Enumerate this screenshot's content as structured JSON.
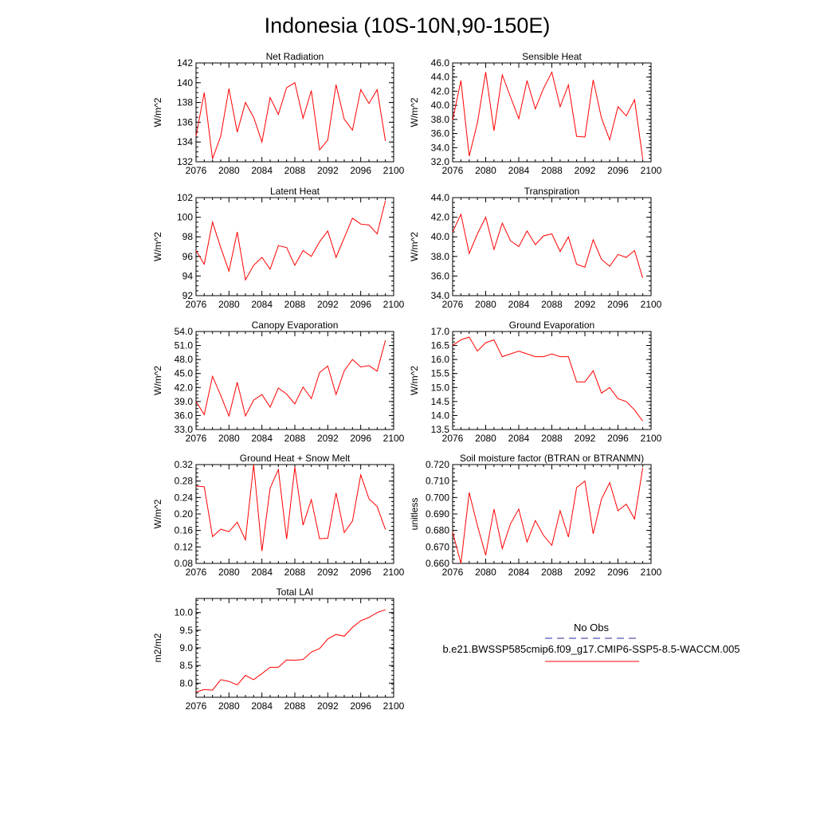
{
  "figure_title": "Indonesia (10S-10N,90-150E)",
  "legend": {
    "obs_label": "No Obs",
    "obs_color": "#2a2a9a",
    "model_label": "b.e21.BWSSP585cmip6.f09_g17.CMIP6-SSP5-8.5-WACCM.005",
    "model_color": "#ff0000"
  },
  "chart_data": [
    {
      "type": "line",
      "title": "Net Radiation",
      "ylabel": "W/m^2",
      "xlim": [
        2076,
        2100
      ],
      "ylim": [
        132,
        142
      ],
      "xticks": [
        "2076",
        "2080",
        "2084",
        "2088",
        "2092",
        "2096",
        "2100"
      ],
      "yticks": [
        "132",
        "134",
        "136",
        "138",
        "140",
        "142"
      ],
      "x": [
        2076,
        2077,
        2078,
        2079,
        2080,
        2081,
        2082,
        2083,
        2084,
        2085,
        2086,
        2087,
        2088,
        2089,
        2090,
        2091,
        2092,
        2093,
        2094,
        2095,
        2096,
        2097,
        2098,
        2099
      ],
      "values": [
        134.6,
        139.0,
        132.3,
        134.6,
        139.4,
        135.0,
        138.0,
        136.5,
        134.0,
        138.5,
        136.8,
        139.5,
        140.0,
        136.4,
        139.2,
        133.2,
        134.2,
        139.8,
        136.3,
        135.2,
        139.3,
        137.9,
        139.3,
        134.1
      ]
    },
    {
      "type": "line",
      "title": "Sensible Heat",
      "ylabel": "W/m^2",
      "xlim": [
        2076,
        2100
      ],
      "ylim": [
        32,
        46
      ],
      "xticks": [
        "2076",
        "2080",
        "2084",
        "2088",
        "2092",
        "2096",
        "2100"
      ],
      "yticks": [
        "32.0",
        "34.0",
        "36.0",
        "38.0",
        "40.0",
        "42.0",
        "44.0",
        "46.0"
      ],
      "x": [
        2076,
        2077,
        2078,
        2079,
        2080,
        2081,
        2082,
        2083,
        2084,
        2085,
        2086,
        2087,
        2088,
        2089,
        2090,
        2091,
        2092,
        2093,
        2094,
        2095,
        2096,
        2097,
        2098,
        2099
      ],
      "values": [
        37.9,
        43.5,
        32.8,
        37.5,
        44.7,
        36.4,
        44.3,
        41.2,
        38.1,
        43.5,
        39.5,
        42.4,
        44.7,
        39.8,
        42.9,
        35.6,
        35.5,
        43.6,
        38.2,
        35.1,
        39.8,
        38.5,
        40.8,
        32.4
      ]
    },
    {
      "type": "line",
      "title": "Latent Heat",
      "ylabel": "W/m^2",
      "xlim": [
        2076,
        2100
      ],
      "ylim": [
        92,
        102
      ],
      "xticks": [
        "2076",
        "2080",
        "2084",
        "2088",
        "2092",
        "2096",
        "2100"
      ],
      "yticks": [
        "92",
        "94",
        "96",
        "98",
        "100",
        "102"
      ],
      "x": [
        2076,
        2077,
        2078,
        2079,
        2080,
        2081,
        2082,
        2083,
        2084,
        2085,
        2086,
        2087,
        2088,
        2089,
        2090,
        2091,
        2092,
        2093,
        2094,
        2095,
        2096,
        2097,
        2098,
        2099
      ],
      "values": [
        96.6,
        95.2,
        99.5,
        96.9,
        94.5,
        98.5,
        93.6,
        95.1,
        95.9,
        94.7,
        97.1,
        96.9,
        95.1,
        96.6,
        96.0,
        97.5,
        98.6,
        95.9,
        97.9,
        99.9,
        99.3,
        99.2,
        98.3,
        101.7
      ]
    },
    {
      "type": "line",
      "title": "Transpiration",
      "ylabel": "W/m^2",
      "xlim": [
        2076,
        2100
      ],
      "ylim": [
        34,
        44
      ],
      "xticks": [
        "2076",
        "2080",
        "2084",
        "2088",
        "2092",
        "2096",
        "2100"
      ],
      "yticks": [
        "34.0",
        "36.0",
        "38.0",
        "40.0",
        "42.0",
        "44.0"
      ],
      "x": [
        2076,
        2077,
        2078,
        2079,
        2080,
        2081,
        2082,
        2083,
        2084,
        2085,
        2086,
        2087,
        2088,
        2089,
        2090,
        2091,
        2092,
        2093,
        2094,
        2095,
        2096,
        2097,
        2098,
        2099
      ],
      "values": [
        40.5,
        42.3,
        38.3,
        40.3,
        42.0,
        38.7,
        41.4,
        39.6,
        39.0,
        40.6,
        39.2,
        40.1,
        40.3,
        38.5,
        40.0,
        37.2,
        36.9,
        39.7,
        37.7,
        37.0,
        38.2,
        37.9,
        38.6,
        35.8
      ]
    },
    {
      "type": "line",
      "title": "Canopy Evaporation",
      "ylabel": "W/m^2",
      "xlim": [
        2076,
        2100
      ],
      "ylim": [
        33,
        54
      ],
      "xticks": [
        "2076",
        "2080",
        "2084",
        "2088",
        "2092",
        "2096",
        "2100"
      ],
      "yticks": [
        "33.0",
        "36.0",
        "39.0",
        "42.0",
        "45.0",
        "48.0",
        "51.0",
        "54.0"
      ],
      "x": [
        2076,
        2077,
        2078,
        2079,
        2080,
        2081,
        2082,
        2083,
        2084,
        2085,
        2086,
        2087,
        2088,
        2089,
        2090,
        2091,
        2092,
        2093,
        2094,
        2095,
        2096,
        2097,
        2098,
        2099
      ],
      "values": [
        39.0,
        36.2,
        44.4,
        40.3,
        35.9,
        43.1,
        35.9,
        39.3,
        40.5,
        37.8,
        41.9,
        40.6,
        38.5,
        42.1,
        39.6,
        45.2,
        46.6,
        40.5,
        45.6,
        48.0,
        46.4,
        46.7,
        45.5,
        52.1
      ]
    },
    {
      "type": "line",
      "title": "Ground Evaporation",
      "ylabel": "W/m^2",
      "xlim": [
        2076,
        2100
      ],
      "ylim": [
        13.5,
        17
      ],
      "xticks": [
        "2076",
        "2080",
        "2084",
        "2088",
        "2092",
        "2096",
        "2100"
      ],
      "yticks": [
        "13.5",
        "14.0",
        "14.5",
        "15.0",
        "15.5",
        "16.0",
        "16.5",
        "17.0"
      ],
      "x": [
        2076,
        2077,
        2078,
        2079,
        2080,
        2081,
        2082,
        2083,
        2084,
        2085,
        2086,
        2087,
        2088,
        2089,
        2090,
        2091,
        2092,
        2093,
        2094,
        2095,
        2096,
        2097,
        2098,
        2099
      ],
      "values": [
        16.5,
        16.7,
        16.8,
        16.3,
        16.6,
        16.7,
        16.1,
        16.2,
        16.3,
        16.2,
        16.1,
        16.1,
        16.2,
        16.1,
        16.1,
        15.2,
        15.2,
        15.6,
        14.8,
        15.0,
        14.6,
        14.5,
        14.2,
        13.8
      ]
    },
    {
      "type": "line",
      "title": "Ground Heat + Snow Melt",
      "ylabel": "W/m^2",
      "xlim": [
        2076,
        2100
      ],
      "ylim": [
        0.08,
        0.32
      ],
      "xticks": [
        "2076",
        "2080",
        "2084",
        "2088",
        "2092",
        "2096",
        "2100"
      ],
      "yticks": [
        "0.08",
        "0.12",
        "0.16",
        "0.20",
        "0.24",
        "0.28",
        "0.32"
      ],
      "x": [
        2076,
        2077,
        2078,
        2079,
        2080,
        2081,
        2082,
        2083,
        2084,
        2085,
        2086,
        2087,
        2088,
        2089,
        2090,
        2091,
        2092,
        2093,
        2094,
        2095,
        2096,
        2097,
        2098,
        2099
      ],
      "values": [
        0.268,
        0.266,
        0.145,
        0.163,
        0.157,
        0.18,
        0.137,
        0.32,
        0.11,
        0.263,
        0.308,
        0.139,
        0.314,
        0.173,
        0.235,
        0.14,
        0.141,
        0.251,
        0.155,
        0.183,
        0.295,
        0.237,
        0.218,
        0.162
      ]
    },
    {
      "type": "line",
      "title": "Soil moisture factor (BTRAN or BTRANMN)",
      "ylabel": "unitless",
      "xlim": [
        2076,
        2100
      ],
      "ylim": [
        0.66,
        0.72
      ],
      "xticks": [
        "2076",
        "2080",
        "2084",
        "2088",
        "2092",
        "2096",
        "2100"
      ],
      "yticks": [
        "0.660",
        "0.670",
        "0.680",
        "0.690",
        "0.700",
        "0.710",
        "0.720"
      ],
      "x": [
        2076,
        2077,
        2078,
        2079,
        2080,
        2081,
        2082,
        2083,
        2084,
        2085,
        2086,
        2087,
        2088,
        2089,
        2090,
        2091,
        2092,
        2093,
        2094,
        2095,
        2096,
        2097,
        2098,
        2099
      ],
      "values": [
        0.679,
        0.66,
        0.703,
        0.683,
        0.665,
        0.693,
        0.669,
        0.684,
        0.693,
        0.673,
        0.686,
        0.677,
        0.671,
        0.692,
        0.676,
        0.706,
        0.71,
        0.678,
        0.699,
        0.709,
        0.692,
        0.696,
        0.687,
        0.718
      ]
    },
    {
      "type": "line",
      "title": "Total LAI",
      "ylabel": "m2/m2",
      "xlim": [
        2076,
        2100
      ],
      "ylim": [
        7.6,
        10.4
      ],
      "xticks": [
        "2076",
        "2080",
        "2084",
        "2088",
        "2092",
        "2096",
        "2100"
      ],
      "yticks": [
        "8.0",
        "8.5",
        "9.0",
        "9.5",
        "10.0"
      ],
      "ytick_values": [
        8.0,
        8.5,
        9.0,
        9.5,
        10.0
      ],
      "x": [
        2076,
        2077,
        2078,
        2079,
        2080,
        2081,
        2082,
        2083,
        2084,
        2085,
        2086,
        2087,
        2088,
        2089,
        2090,
        2091,
        2092,
        2093,
        2094,
        2095,
        2096,
        2097,
        2098,
        2099
      ],
      "values": [
        7.75,
        7.82,
        7.8,
        8.1,
        8.05,
        7.95,
        8.22,
        8.1,
        8.27,
        8.45,
        8.45,
        8.66,
        8.65,
        8.67,
        8.88,
        8.98,
        9.25,
        9.38,
        9.33,
        9.58,
        9.77,
        9.86,
        10.0,
        10.08
      ]
    }
  ]
}
